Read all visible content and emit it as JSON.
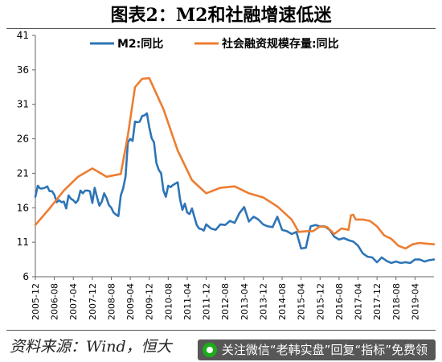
{
  "title": "图表2：M2和社融增速低迷",
  "source": "资料来源：Wind，恒大",
  "watermark": "关注微信“老韩实盘”回复“指标”免费领",
  "chart_data": {
    "type": "line",
    "ylim": [
      6,
      41
    ],
    "yticks": [
      6,
      11,
      16,
      21,
      26,
      31,
      36,
      41
    ],
    "grid": false,
    "legend_placement": "top",
    "x_start": "2005-12",
    "x_end": "2019-12",
    "xtick_labels": [
      "2005-12",
      "2006-08",
      "2007-04",
      "2007-12",
      "2008-08",
      "2009-04",
      "2009-12",
      "2010-08",
      "2011-04",
      "2011-12",
      "2012-08",
      "2013-04",
      "2013-12",
      "2014-08",
      "2015-04",
      "2015-12",
      "2016-08",
      "2017-04",
      "2017-12",
      "2018-08",
      "2019-04"
    ],
    "series": [
      {
        "name": "M2:同比",
        "color": "#2e75b6",
        "x": [
          "2005-12",
          "2006-01",
          "2006-02",
          "2006-03",
          "2006-04",
          "2006-05",
          "2006-06",
          "2006-07",
          "2006-08",
          "2006-09",
          "2006-10",
          "2006-11",
          "2006-12",
          "2007-01",
          "2007-02",
          "2007-03",
          "2007-04",
          "2007-05",
          "2007-06",
          "2007-07",
          "2007-08",
          "2007-09",
          "2007-10",
          "2007-11",
          "2007-12",
          "2008-01",
          "2008-02",
          "2008-03",
          "2008-04",
          "2008-05",
          "2008-06",
          "2008-07",
          "2008-08",
          "2008-09",
          "2008-10",
          "2008-11",
          "2008-12",
          "2009-01",
          "2009-02",
          "2009-03",
          "2009-04",
          "2009-05",
          "2009-06",
          "2009-07",
          "2009-08",
          "2009-09",
          "2009-10",
          "2009-11",
          "2009-12",
          "2010-01",
          "2010-02",
          "2010-03",
          "2010-04",
          "2010-05",
          "2010-06",
          "2010-07",
          "2010-08",
          "2010-09",
          "2010-10",
          "2010-11",
          "2010-12",
          "2011-01",
          "2011-02",
          "2011-03",
          "2011-04",
          "2011-05",
          "2011-06",
          "2011-07",
          "2011-08",
          "2011-09",
          "2011-10",
          "2011-11",
          "2011-12",
          "2012-02",
          "2012-04",
          "2012-06",
          "2012-08",
          "2012-10",
          "2012-12",
          "2013-02",
          "2013-04",
          "2013-06",
          "2013-08",
          "2013-10",
          "2013-12",
          "2014-02",
          "2014-04",
          "2014-06",
          "2014-08",
          "2014-10",
          "2014-12",
          "2015-02",
          "2015-04",
          "2015-06",
          "2015-08",
          "2015-10",
          "2015-12",
          "2016-02",
          "2016-04",
          "2016-06",
          "2016-08",
          "2016-10",
          "2016-12",
          "2017-02",
          "2017-04",
          "2017-06",
          "2017-08",
          "2017-10",
          "2017-12",
          "2018-02",
          "2018-04",
          "2018-06",
          "2018-08",
          "2018-10",
          "2018-12",
          "2019-02",
          "2019-04",
          "2019-06",
          "2019-08",
          "2019-10",
          "2019-12"
        ],
        "values": [
          17.6,
          19.2,
          18.8,
          18.8,
          18.9,
          19.1,
          18.4,
          18.4,
          17.9,
          16.8,
          17.1,
          16.8,
          16.9,
          15.9,
          17.8,
          17.3,
          17.1,
          16.7,
          17.1,
          18.5,
          18.1,
          18.5,
          18.5,
          18.4,
          16.7,
          18.9,
          17.5,
          16.3,
          16.9,
          18.1,
          17.4,
          16.4,
          16.0,
          15.3,
          15.0,
          14.8,
          17.8,
          18.8,
          20.5,
          25.5,
          26.0,
          25.7,
          28.5,
          28.4,
          28.5,
          29.3,
          29.4,
          29.7,
          27.7,
          26.1,
          25.5,
          22.5,
          21.5,
          21.0,
          18.5,
          17.6,
          19.2,
          19.0,
          19.3,
          19.5,
          19.7,
          17.2,
          15.7,
          16.6,
          15.3,
          15.1,
          15.9,
          14.7,
          13.5,
          13.0,
          12.9,
          12.7,
          13.6,
          13.0,
          12.8,
          13.6,
          13.5,
          14.1,
          13.8,
          15.2,
          16.1,
          14.0,
          14.7,
          14.3,
          13.6,
          13.3,
          13.2,
          14.7,
          12.8,
          12.6,
          12.2,
          12.5,
          10.1,
          10.2,
          13.3,
          13.5,
          13.3,
          13.3,
          12.8,
          11.8,
          11.4,
          11.6,
          11.3,
          11.1,
          10.5,
          9.4,
          8.9,
          8.8,
          8.1,
          8.8,
          8.3,
          8.0,
          8.2,
          8.0,
          8.1,
          8.0,
          8.5,
          8.5,
          8.2,
          8.4,
          8.5
        ]
      },
      {
        "name": "社会融资规模存量:同比",
        "color": "#ed7d31",
        "x": [
          "2005-12",
          "2006-06",
          "2006-12",
          "2007-06",
          "2007-12",
          "2008-06",
          "2008-12",
          "2009-03",
          "2009-06",
          "2009-09",
          "2009-12",
          "2010-06",
          "2010-12",
          "2011-06",
          "2011-12",
          "2012-06",
          "2012-12",
          "2013-06",
          "2013-12",
          "2014-06",
          "2014-12",
          "2015-03",
          "2015-06",
          "2015-09",
          "2015-12",
          "2016-03",
          "2016-06",
          "2016-09",
          "2016-12",
          "2017-01",
          "2017-02",
          "2017-03",
          "2017-06",
          "2017-09",
          "2017-12",
          "2018-03",
          "2018-06",
          "2018-09",
          "2018-12",
          "2019-03",
          "2019-06",
          "2019-09",
          "2019-12"
        ],
        "values": [
          13.5,
          15.9,
          18.5,
          20.5,
          21.7,
          20.5,
          20.9,
          26.5,
          33.5,
          34.7,
          34.8,
          30.3,
          24.3,
          20.0,
          18.1,
          18.9,
          19.1,
          18.1,
          17.5,
          16.2,
          14.3,
          12.5,
          12.6,
          12.6,
          13.3,
          13.2,
          12.2,
          13.0,
          12.8,
          14.9,
          15.0,
          14.3,
          14.3,
          14.1,
          13.3,
          12.0,
          11.5,
          10.5,
          10.1,
          10.7,
          10.9,
          10.8,
          10.7
        ]
      }
    ]
  }
}
